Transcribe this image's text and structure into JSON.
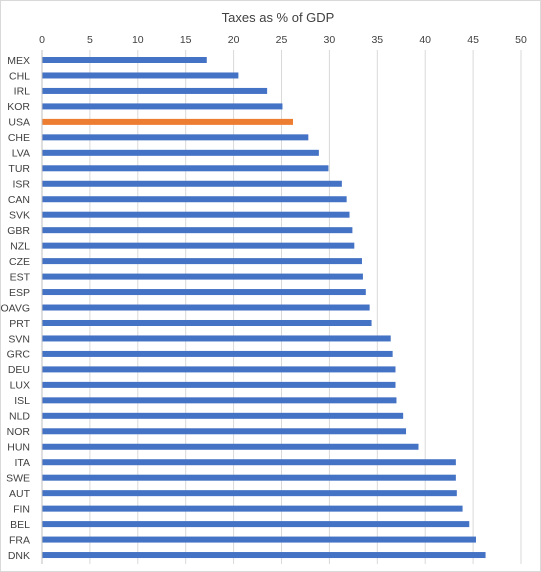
{
  "chart_data": {
    "type": "bar",
    "orientation": "horizontal",
    "title": "Taxes as % of GDP",
    "xlabel": "",
    "ylabel": "",
    "xlim": [
      0,
      50
    ],
    "xticks": [
      0,
      5,
      10,
      15,
      20,
      25,
      30,
      35,
      40,
      45,
      50
    ],
    "x_axis_position": "top",
    "grid": true,
    "legend": "none",
    "categories": [
      "MEX",
      "CHL",
      "IRL",
      "KOR",
      "USA",
      "CHE",
      "LVA",
      "TUR",
      "ISR",
      "CAN",
      "SVK",
      "GBR",
      "NZL",
      "CZE",
      "EST",
      "ESP",
      "OAVG",
      "PRT",
      "SVN",
      "GRC",
      "DEU",
      "LUX",
      "ISL",
      "NLD",
      "NOR",
      "HUN",
      "ITA",
      "SWE",
      "AUT",
      "FIN",
      "BEL",
      "FRA",
      "DNK"
    ],
    "values": [
      17.2,
      20.5,
      23.5,
      25.1,
      26.2,
      27.8,
      28.9,
      29.9,
      31.3,
      31.8,
      32.1,
      32.4,
      32.6,
      33.4,
      33.5,
      33.8,
      34.2,
      34.4,
      36.4,
      36.6,
      36.9,
      36.9,
      37.0,
      37.7,
      38.0,
      39.3,
      43.2,
      43.2,
      43.3,
      43.9,
      44.6,
      45.3,
      46.3
    ],
    "highlight_category": "USA",
    "colors": {
      "bar": "#4472c4",
      "highlight": "#ed7d31"
    }
  }
}
